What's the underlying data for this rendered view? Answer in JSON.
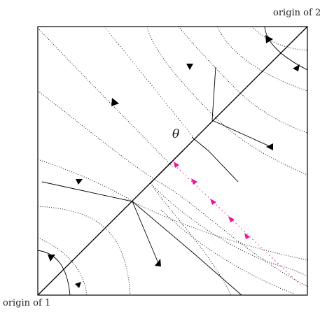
{
  "labels": {
    "origin_2": "origin of 2",
    "origin_1": "origin of 1",
    "theta": "θ"
  },
  "colors": {
    "ink": "#000000",
    "highlight": "#e8149b"
  }
}
